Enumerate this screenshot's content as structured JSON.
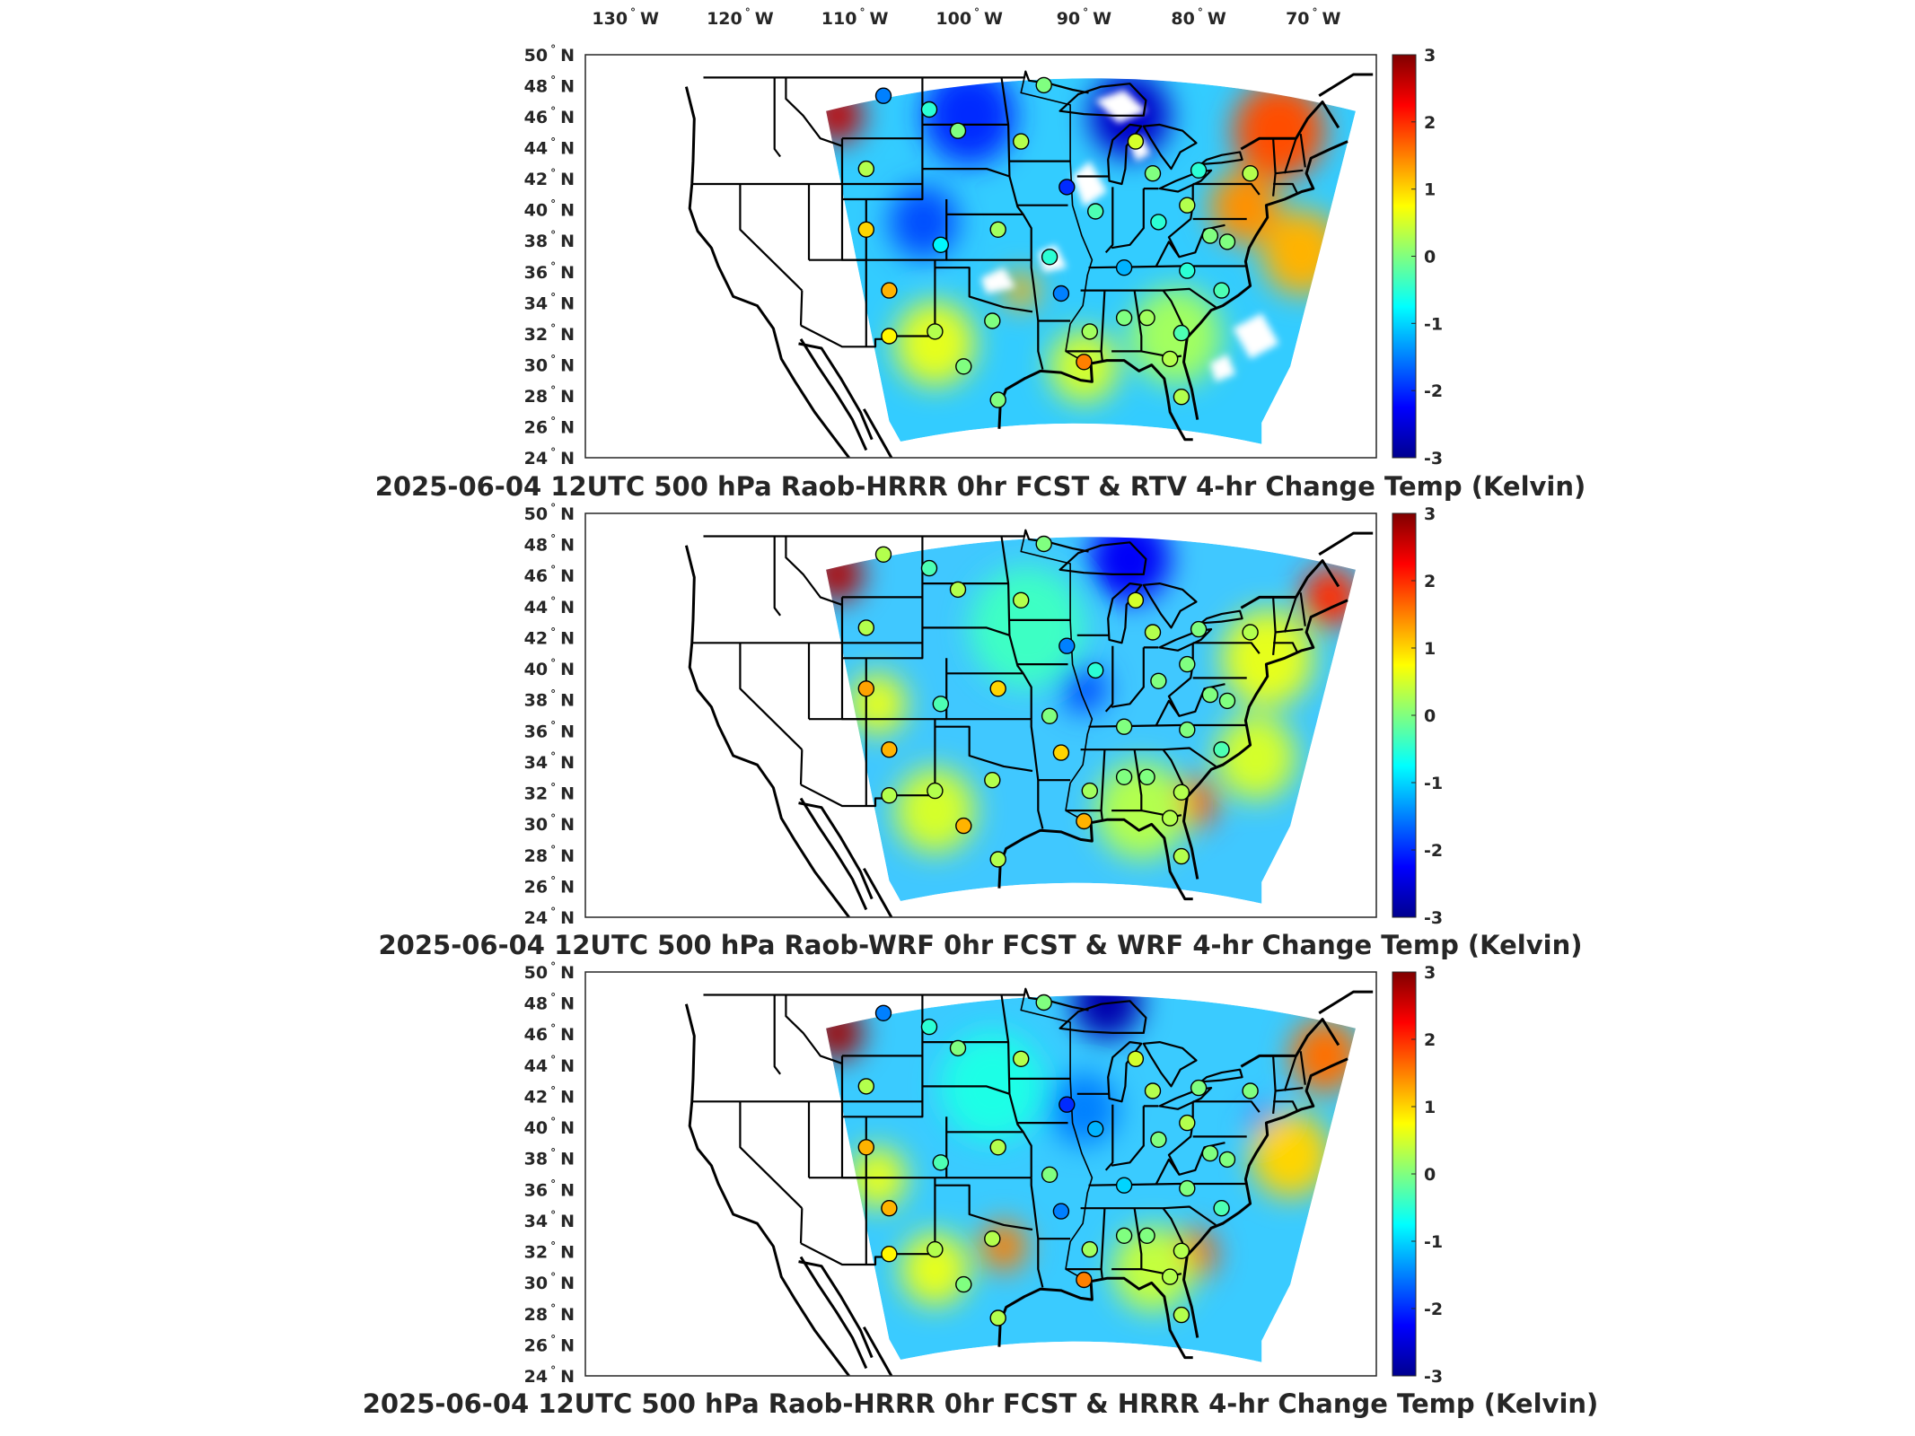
{
  "figure": {
    "top_lon_ticks": [
      {
        "deg": "130",
        "dir": "W"
      },
      {
        "deg": "120",
        "dir": "W"
      },
      {
        "deg": "110",
        "dir": "W"
      },
      {
        "deg": "100",
        "dir": "W"
      },
      {
        "deg": "90",
        "dir": "W"
      },
      {
        "deg": "80",
        "dir": "W"
      },
      {
        "deg": "70",
        "dir": "W"
      }
    ],
    "lat_ticks": [
      {
        "deg": "50",
        "dir": "N"
      },
      {
        "deg": "48",
        "dir": "N"
      },
      {
        "deg": "46",
        "dir": "N"
      },
      {
        "deg": "44",
        "dir": "N"
      },
      {
        "deg": "42",
        "dir": "N"
      },
      {
        "deg": "40",
        "dir": "N"
      },
      {
        "deg": "38",
        "dir": "N"
      },
      {
        "deg": "36",
        "dir": "N"
      },
      {
        "deg": "34",
        "dir": "N"
      },
      {
        "deg": "32",
        "dir": "N"
      },
      {
        "deg": "30",
        "dir": "N"
      },
      {
        "deg": "28",
        "dir": "N"
      },
      {
        "deg": "26",
        "dir": "N"
      },
      {
        "deg": "24",
        "dir": "N"
      }
    ],
    "colorbar": {
      "min": -3,
      "max": 3,
      "tick_labels": [
        "3",
        "2",
        "1",
        "0",
        "-1",
        "-2",
        "-3"
      ],
      "colors": [
        "#00008f",
        "#0000ff",
        "#0080ff",
        "#00ffff",
        "#80ff80",
        "#ffff00",
        "#ff8000",
        "#ff0000",
        "#800000"
      ]
    },
    "panels": [
      {
        "title": "2025-06-04 12UTC 500 hPa Raob-HRRR 0hr FCST & RTV 4-hr Change Temp (Kelvin)",
        "background": "#33ccff",
        "has_data_gaps": true,
        "anomalies": [
          {
            "lon": -111.5,
            "lat": 46.5,
            "value": 2.6,
            "r": 2.2
          },
          {
            "lon": -100.0,
            "lat": 46.5,
            "value": -2.0,
            "r": 4.0
          },
          {
            "lon": -104.0,
            "lat": 39.5,
            "value": -1.8,
            "r": 3.0
          },
          {
            "lon": -86.0,
            "lat": 46.5,
            "value": -2.6,
            "r": 3.5
          },
          {
            "lon": -73.0,
            "lat": 45.5,
            "value": 1.8,
            "r": 4.0
          },
          {
            "lon": -76.0,
            "lat": 40.5,
            "value": 1.4,
            "r": 3.0
          },
          {
            "lon": -71.0,
            "lat": 37.5,
            "value": 1.2,
            "r": 3.5
          },
          {
            "lon": -103.0,
            "lat": 31.5,
            "value": 0.6,
            "r": 3.5
          },
          {
            "lon": -82.0,
            "lat": 32.0,
            "value": 0.2,
            "r": 4.0
          },
          {
            "lon": -90.0,
            "lat": 30.0,
            "value": 0.5,
            "r": 3.0
          },
          {
            "lon": -95.5,
            "lat": 35.0,
            "value": 1.2,
            "r": 1.5
          }
        ],
        "stations": [
          {
            "lon": -107.5,
            "lat": 47.8,
            "value": -1.5
          },
          {
            "lon": -103.5,
            "lat": 46.9,
            "value": -0.5
          },
          {
            "lon": -101.0,
            "lat": 45.5,
            "value": 0.0
          },
          {
            "lon": -93.5,
            "lat": 48.5,
            "value": 0.0
          },
          {
            "lon": -95.5,
            "lat": 44.8,
            "value": 0.3
          },
          {
            "lon": -109.0,
            "lat": 43.0,
            "value": 0.3
          },
          {
            "lon": -85.5,
            "lat": 44.8,
            "value": 0.5
          },
          {
            "lon": -84.0,
            "lat": 42.7,
            "value": 0.0
          },
          {
            "lon": -80.0,
            "lat": 42.9,
            "value": -0.5
          },
          {
            "lon": -75.5,
            "lat": 42.7,
            "value": 0.3
          },
          {
            "lon": -91.5,
            "lat": 41.8,
            "value": -2.0
          },
          {
            "lon": -89.0,
            "lat": 40.2,
            "value": -0.3
          },
          {
            "lon": -83.5,
            "lat": 39.5,
            "value": -0.5
          },
          {
            "lon": -81.0,
            "lat": 40.6,
            "value": 0.3
          },
          {
            "lon": -79.0,
            "lat": 38.6,
            "value": 0.0
          },
          {
            "lon": -77.5,
            "lat": 38.2,
            "value": 0.0
          },
          {
            "lon": -109.0,
            "lat": 39.0,
            "value": 1.0
          },
          {
            "lon": -102.5,
            "lat": 38.0,
            "value": -0.8
          },
          {
            "lon": -97.5,
            "lat": 39.0,
            "value": 0.2
          },
          {
            "lon": -93.0,
            "lat": 37.2,
            "value": -0.5
          },
          {
            "lon": -86.5,
            "lat": 36.5,
            "value": -1.2
          },
          {
            "lon": -81.0,
            "lat": 36.3,
            "value": -0.5
          },
          {
            "lon": -78.0,
            "lat": 35.0,
            "value": -0.3
          },
          {
            "lon": -107.0,
            "lat": 35.0,
            "value": 1.2
          },
          {
            "lon": -103.0,
            "lat": 32.3,
            "value": 0.3
          },
          {
            "lon": -98.0,
            "lat": 33.0,
            "value": 0.0
          },
          {
            "lon": -92.0,
            "lat": 34.8,
            "value": -1.5
          },
          {
            "lon": -89.5,
            "lat": 32.3,
            "value": 0.2
          },
          {
            "lon": -86.5,
            "lat": 33.2,
            "value": 0.0
          },
          {
            "lon": -84.5,
            "lat": 33.2,
            "value": 0.2
          },
          {
            "lon": -81.5,
            "lat": 32.2,
            "value": -0.3
          },
          {
            "lon": -107.0,
            "lat": 32.0,
            "value": 0.8
          },
          {
            "lon": -100.5,
            "lat": 30.0,
            "value": 0.0
          },
          {
            "lon": -97.5,
            "lat": 27.8,
            "value": 0.0
          },
          {
            "lon": -90.0,
            "lat": 30.3,
            "value": 1.5
          },
          {
            "lon": -82.5,
            "lat": 30.5,
            "value": 0.3
          },
          {
            "lon": -81.5,
            "lat": 28.0,
            "value": 0.3
          }
        ]
      },
      {
        "title": "2025-06-04 12UTC 500 hPa Raob-WRF 0hr FCST & WRF 4-hr Change Temp (Kelvin)",
        "background": "#40c8ff",
        "has_data_gaps": false,
        "anomalies": [
          {
            "lon": -111.5,
            "lat": 46.5,
            "value": 2.7,
            "r": 2.2
          },
          {
            "lon": -86.0,
            "lat": 47.5,
            "value": -2.3,
            "r": 3.5
          },
          {
            "lon": -90.0,
            "lat": 39.0,
            "value": -1.8,
            "r": 2.0
          },
          {
            "lon": -68.5,
            "lat": 45.0,
            "value": 2.0,
            "r": 2.5
          },
          {
            "lon": -74.0,
            "lat": 41.0,
            "value": 0.6,
            "r": 4.0
          },
          {
            "lon": -80.5,
            "lat": 31.5,
            "value": 1.8,
            "r": 2.0
          },
          {
            "lon": -103.0,
            "lat": 31.0,
            "value": 0.5,
            "r": 3.5
          },
          {
            "lon": -108.0,
            "lat": 38.0,
            "value": 0.6,
            "r": 2.5
          },
          {
            "lon": -95.0,
            "lat": 43.0,
            "value": -0.4,
            "r": 5.0
          },
          {
            "lon": -85.0,
            "lat": 31.0,
            "value": 0.3,
            "r": 4.0
          },
          {
            "lon": -75.0,
            "lat": 34.5,
            "value": 0.5,
            "r": 3.5
          }
        ],
        "stations": [
          {
            "lon": -107.5,
            "lat": 47.8,
            "value": 0.3
          },
          {
            "lon": -103.5,
            "lat": 46.9,
            "value": -0.3
          },
          {
            "lon": -101.0,
            "lat": 45.5,
            "value": 0.3
          },
          {
            "lon": -93.5,
            "lat": 48.5,
            "value": 0.0
          },
          {
            "lon": -95.5,
            "lat": 44.8,
            "value": 0.3
          },
          {
            "lon": -109.0,
            "lat": 43.0,
            "value": 0.3
          },
          {
            "lon": -85.5,
            "lat": 44.8,
            "value": 0.5
          },
          {
            "lon": -84.0,
            "lat": 42.7,
            "value": 0.3
          },
          {
            "lon": -80.0,
            "lat": 42.9,
            "value": 0.0
          },
          {
            "lon": -75.5,
            "lat": 42.7,
            "value": 0.3
          },
          {
            "lon": -91.5,
            "lat": 41.8,
            "value": -1.5
          },
          {
            "lon": -89.0,
            "lat": 40.2,
            "value": -0.5
          },
          {
            "lon": -83.5,
            "lat": 39.5,
            "value": 0.0
          },
          {
            "lon": -81.0,
            "lat": 40.6,
            "value": 0.0
          },
          {
            "lon": -79.0,
            "lat": 38.6,
            "value": 0.0
          },
          {
            "lon": -77.5,
            "lat": 38.2,
            "value": 0.0
          },
          {
            "lon": -109.0,
            "lat": 39.0,
            "value": 1.3
          },
          {
            "lon": -102.5,
            "lat": 38.0,
            "value": -0.3
          },
          {
            "lon": -97.5,
            "lat": 39.0,
            "value": 1.0
          },
          {
            "lon": -93.0,
            "lat": 37.2,
            "value": 0.0
          },
          {
            "lon": -86.5,
            "lat": 36.5,
            "value": 0.0
          },
          {
            "lon": -81.0,
            "lat": 36.3,
            "value": 0.0
          },
          {
            "lon": -78.0,
            "lat": 35.0,
            "value": -0.3
          },
          {
            "lon": -107.0,
            "lat": 35.0,
            "value": 1.2
          },
          {
            "lon": -103.0,
            "lat": 32.3,
            "value": 0.3
          },
          {
            "lon": -98.0,
            "lat": 33.0,
            "value": 0.3
          },
          {
            "lon": -92.0,
            "lat": 34.8,
            "value": 1.0
          },
          {
            "lon": -89.5,
            "lat": 32.3,
            "value": 0.2
          },
          {
            "lon": -86.5,
            "lat": 33.2,
            "value": 0.0
          },
          {
            "lon": -84.5,
            "lat": 33.2,
            "value": 0.0
          },
          {
            "lon": -81.5,
            "lat": 32.2,
            "value": 0.3
          },
          {
            "lon": -107.0,
            "lat": 32.0,
            "value": 0.3
          },
          {
            "lon": -100.5,
            "lat": 30.0,
            "value": 1.2
          },
          {
            "lon": -97.5,
            "lat": 27.8,
            "value": 0.3
          },
          {
            "lon": -90.0,
            "lat": 30.3,
            "value": 1.2
          },
          {
            "lon": -82.5,
            "lat": 30.5,
            "value": 0.3
          },
          {
            "lon": -81.5,
            "lat": 28.0,
            "value": 0.3
          }
        ]
      },
      {
        "title": "2025-06-04 12UTC 500 hPa Raob-HRRR 0hr FCST & HRRR 4-hr Change Temp (Kelvin)",
        "background": "#3acbff",
        "has_data_gaps": false,
        "anomalies": [
          {
            "lon": -111.5,
            "lat": 46.5,
            "value": 2.8,
            "r": 2.2
          },
          {
            "lon": -88.0,
            "lat": 48.5,
            "value": -2.8,
            "r": 3.0
          },
          {
            "lon": -90.0,
            "lat": 41.5,
            "value": -1.5,
            "r": 3.0
          },
          {
            "lon": -74.0,
            "lat": 40.5,
            "value": -2.0,
            "r": 1.5
          },
          {
            "lon": -69.0,
            "lat": 45.0,
            "value": 1.6,
            "r": 3.0
          },
          {
            "lon": -72.0,
            "lat": 38.5,
            "value": 1.0,
            "r": 3.5
          },
          {
            "lon": -80.5,
            "lat": 32.0,
            "value": 1.8,
            "r": 2.0
          },
          {
            "lon": -97.0,
            "lat": 32.5,
            "value": 1.5,
            "r": 2.0
          },
          {
            "lon": -108.0,
            "lat": 37.0,
            "value": 0.6,
            "r": 2.5
          },
          {
            "lon": -103.0,
            "lat": 31.0,
            "value": 0.6,
            "r": 3.0
          },
          {
            "lon": -84.0,
            "lat": 31.0,
            "value": 0.4,
            "r": 3.5
          },
          {
            "lon": -98.0,
            "lat": 43.0,
            "value": -0.6,
            "r": 4.5
          }
        ],
        "stations": [
          {
            "lon": -107.5,
            "lat": 47.8,
            "value": -1.5
          },
          {
            "lon": -103.5,
            "lat": 46.9,
            "value": -0.5
          },
          {
            "lon": -101.0,
            "lat": 45.5,
            "value": 0.0
          },
          {
            "lon": -93.5,
            "lat": 48.5,
            "value": 0.0
          },
          {
            "lon": -95.5,
            "lat": 44.8,
            "value": 0.3
          },
          {
            "lon": -109.0,
            "lat": 43.0,
            "value": 0.3
          },
          {
            "lon": -85.5,
            "lat": 44.8,
            "value": 0.5
          },
          {
            "lon": -84.0,
            "lat": 42.7,
            "value": 0.3
          },
          {
            "lon": -80.0,
            "lat": 42.9,
            "value": 0.0
          },
          {
            "lon": -75.5,
            "lat": 42.7,
            "value": 0.0
          },
          {
            "lon": -91.5,
            "lat": 41.8,
            "value": -2.0
          },
          {
            "lon": -89.0,
            "lat": 40.2,
            "value": -1.2
          },
          {
            "lon": -83.5,
            "lat": 39.5,
            "value": 0.0
          },
          {
            "lon": -81.0,
            "lat": 40.6,
            "value": 0.3
          },
          {
            "lon": -79.0,
            "lat": 38.6,
            "value": 0.0
          },
          {
            "lon": -77.5,
            "lat": 38.2,
            "value": 0.0
          },
          {
            "lon": -109.0,
            "lat": 39.0,
            "value": 1.2
          },
          {
            "lon": -102.5,
            "lat": 38.0,
            "value": -0.3
          },
          {
            "lon": -97.5,
            "lat": 39.0,
            "value": 0.3
          },
          {
            "lon": -93.0,
            "lat": 37.2,
            "value": 0.0
          },
          {
            "lon": -86.5,
            "lat": 36.5,
            "value": -1.0
          },
          {
            "lon": -81.0,
            "lat": 36.3,
            "value": 0.0
          },
          {
            "lon": -78.0,
            "lat": 35.0,
            "value": -0.3
          },
          {
            "lon": -107.0,
            "lat": 35.0,
            "value": 1.2
          },
          {
            "lon": -103.0,
            "lat": 32.3,
            "value": 0.3
          },
          {
            "lon": -98.0,
            "lat": 33.0,
            "value": 0.3
          },
          {
            "lon": -92.0,
            "lat": 34.8,
            "value": -1.5
          },
          {
            "lon": -89.5,
            "lat": 32.3,
            "value": 0.2
          },
          {
            "lon": -86.5,
            "lat": 33.2,
            "value": 0.0
          },
          {
            "lon": -84.5,
            "lat": 33.2,
            "value": 0.0
          },
          {
            "lon": -81.5,
            "lat": 32.2,
            "value": 0.3
          },
          {
            "lon": -107.0,
            "lat": 32.0,
            "value": 0.8
          },
          {
            "lon": -100.5,
            "lat": 30.0,
            "value": 0.0
          },
          {
            "lon": -97.5,
            "lat": 27.8,
            "value": 0.3
          },
          {
            "lon": -90.0,
            "lat": 30.3,
            "value": 1.5
          },
          {
            "lon": -82.5,
            "lat": 30.5,
            "value": 0.3
          },
          {
            "lon": -81.5,
            "lat": 28.0,
            "value": 0.3
          }
        ]
      }
    ]
  }
}
